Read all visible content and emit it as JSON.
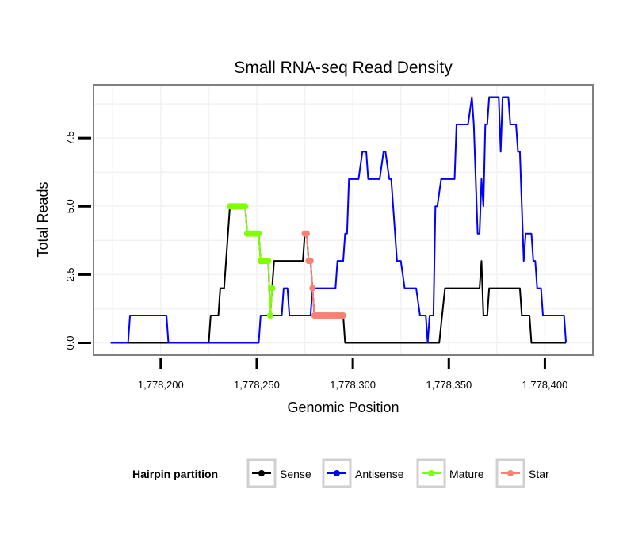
{
  "chart_data": {
    "type": "line",
    "title": "Small RNA-seq Read Density",
    "xlabel": "Genomic Position",
    "ylabel": "Total Reads",
    "xlim": [
      1778165,
      1778425
    ],
    "ylim": [
      -0.45,
      9.45
    ],
    "x_ticks": [
      1778200,
      1778250,
      1778300,
      1778350,
      1778400
    ],
    "x_tick_labels": [
      "1,778,200",
      "1,778,250",
      "1,778,300",
      "1,778,350",
      "1,778,400"
    ],
    "y_ticks": [
      0,
      2.5,
      5,
      7.5
    ],
    "y_tick_labels": [
      "0.0",
      "2.5",
      "5.0",
      "7.5"
    ],
    "legend": {
      "title": "Hairpin partition",
      "position": "bottom",
      "entries": [
        "Sense",
        "Antisense",
        "Mature",
        "Star"
      ]
    },
    "series": [
      {
        "name": "Sense",
        "color": "#000000",
        "points": [
          [
            1778174,
            0
          ],
          [
            1778225,
            0
          ],
          [
            1778226,
            1
          ],
          [
            1778230,
            1
          ],
          [
            1778231,
            2
          ],
          [
            1778233,
            2
          ],
          [
            1778236,
            5
          ],
          [
            1778244,
            5
          ],
          [
            1778245,
            4
          ],
          [
            1778251,
            4
          ],
          [
            1778252,
            3
          ],
          [
            1778256,
            3
          ],
          [
            1778257,
            1
          ],
          [
            1778259,
            3
          ],
          [
            1778262,
            3
          ],
          [
            1778274,
            3
          ],
          [
            1778275,
            4
          ],
          [
            1778276,
            4
          ],
          [
            1778277,
            3
          ],
          [
            1778278,
            3
          ],
          [
            1778279,
            2
          ],
          [
            1778280,
            1
          ],
          [
            1778295,
            1
          ],
          [
            1778296,
            0
          ],
          [
            1778345,
            0
          ],
          [
            1778348,
            2
          ],
          [
            1778366,
            2
          ],
          [
            1778367,
            3
          ],
          [
            1778368,
            1
          ],
          [
            1778370,
            1
          ],
          [
            1778371,
            2
          ],
          [
            1778387,
            2
          ],
          [
            1778388,
            1
          ],
          [
            1778392,
            1
          ],
          [
            1778393,
            0
          ],
          [
            1778411,
            0
          ]
        ]
      },
      {
        "name": "Antisense",
        "color": "#0000ff",
        "points": [
          [
            1778174,
            0
          ],
          [
            1778183,
            0
          ],
          [
            1778184,
            1
          ],
          [
            1778203,
            1
          ],
          [
            1778204,
            0
          ],
          [
            1778226,
            0
          ],
          [
            1778251,
            0
          ],
          [
            1778252,
            1
          ],
          [
            1778263,
            1
          ],
          [
            1778264,
            2
          ],
          [
            1778266,
            2
          ],
          [
            1778267,
            1
          ],
          [
            1778278,
            1
          ],
          [
            1778279,
            2
          ],
          [
            1778291,
            2
          ],
          [
            1778292,
            3
          ],
          [
            1778295,
            3
          ],
          [
            1778296,
            4
          ],
          [
            1778297,
            4
          ],
          [
            1778298,
            6
          ],
          [
            1778303,
            6
          ],
          [
            1778305,
            7
          ],
          [
            1778307,
            7
          ],
          [
            1778308,
            6
          ],
          [
            1778314,
            6
          ],
          [
            1778316,
            7
          ],
          [
            1778317,
            7
          ],
          [
            1778319,
            6
          ],
          [
            1778320,
            6
          ],
          [
            1778323,
            3
          ],
          [
            1778325,
            3
          ],
          [
            1778327,
            2
          ],
          [
            1778333,
            2
          ],
          [
            1778335,
            1
          ],
          [
            1778338,
            1
          ],
          [
            1778339,
            0
          ],
          [
            1778340,
            1
          ],
          [
            1778342,
            1
          ],
          [
            1778343,
            5
          ],
          [
            1778344,
            5
          ],
          [
            1778346,
            6
          ],
          [
            1778353,
            6
          ],
          [
            1778354,
            8
          ],
          [
            1778360,
            8
          ],
          [
            1778362,
            9
          ],
          [
            1778363,
            8
          ],
          [
            1778364,
            6
          ],
          [
            1778365,
            4
          ],
          [
            1778366,
            4
          ],
          [
            1778367,
            6
          ],
          [
            1778368,
            5
          ],
          [
            1778369,
            8
          ],
          [
            1778370,
            8
          ],
          [
            1778371,
            9
          ],
          [
            1778376,
            9
          ],
          [
            1778377,
            7
          ],
          [
            1778378,
            9
          ],
          [
            1778381,
            9
          ],
          [
            1778382,
            8
          ],
          [
            1778385,
            8
          ],
          [
            1778386,
            7
          ],
          [
            1778387,
            7
          ],
          [
            1778389,
            3
          ],
          [
            1778390,
            4
          ],
          [
            1778393,
            4
          ],
          [
            1778394,
            3
          ],
          [
            1778395,
            3
          ],
          [
            1778396,
            2
          ],
          [
            1778398,
            2
          ],
          [
            1778399,
            1
          ],
          [
            1778410,
            1
          ],
          [
            1778411,
            0
          ]
        ]
      },
      {
        "name": "Mature",
        "color": "#7fff00",
        "points": [
          [
            1778236,
            5
          ],
          [
            1778237,
            5
          ],
          [
            1778238,
            5
          ],
          [
            1778239,
            5
          ],
          [
            1778240,
            5
          ],
          [
            1778241,
            5
          ],
          [
            1778242,
            5
          ],
          [
            1778243,
            5
          ],
          [
            1778244,
            5
          ],
          [
            1778245,
            4
          ],
          [
            1778246,
            4
          ],
          [
            1778247,
            4
          ],
          [
            1778248,
            4
          ],
          [
            1778249,
            4
          ],
          [
            1778250,
            4
          ],
          [
            1778251,
            4
          ],
          [
            1778252,
            3
          ],
          [
            1778253,
            3
          ],
          [
            1778254,
            3
          ],
          [
            1778255,
            3
          ],
          [
            1778256,
            3
          ],
          [
            1778257,
            1
          ],
          [
            1778258,
            2
          ]
        ]
      },
      {
        "name": "Star",
        "color": "#fa8072",
        "points": [
          [
            1778275,
            4
          ],
          [
            1778276,
            4
          ],
          [
            1778277,
            3
          ],
          [
            1778278,
            3
          ],
          [
            1778279,
            2
          ],
          [
            1778280,
            1
          ],
          [
            1778281,
            1
          ],
          [
            1778282,
            1
          ],
          [
            1778283,
            1
          ],
          [
            1778284,
            1
          ],
          [
            1778285,
            1
          ],
          [
            1778286,
            1
          ],
          [
            1778287,
            1
          ],
          [
            1778288,
            1
          ],
          [
            1778289,
            1
          ],
          [
            1778290,
            1
          ],
          [
            1778291,
            1
          ],
          [
            1778292,
            1
          ],
          [
            1778293,
            1
          ],
          [
            1778294,
            1
          ],
          [
            1778295,
            1
          ]
        ]
      }
    ]
  }
}
